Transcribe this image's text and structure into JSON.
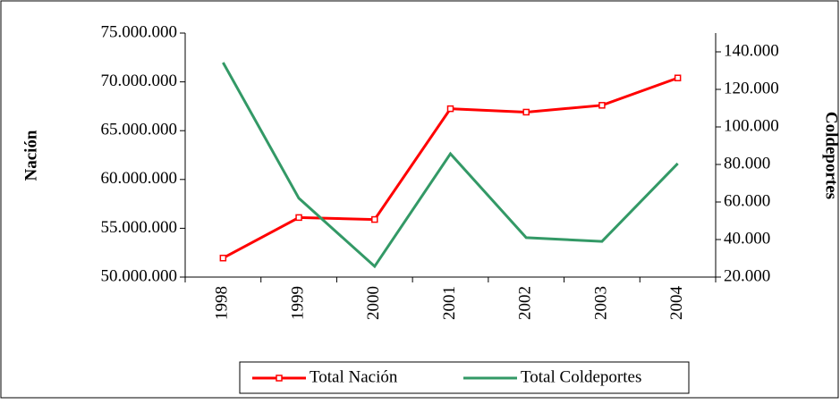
{
  "chart_data": {
    "type": "line",
    "y_label": "Nación",
    "y2_label": "Coldeportes",
    "categories": [
      "1998",
      "1999",
      "2000",
      "2001",
      "2002",
      "2003",
      "2004"
    ],
    "series": [
      {
        "name": "Total Nación",
        "color": "#ff0000",
        "marker": "square",
        "values": [
          51950000,
          56100000,
          55900000,
          67250000,
          66900000,
          67600000,
          70400000
        ]
      },
      {
        "name": "Total Coldeportes",
        "color": "#339966",
        "axis": "y2",
        "values": [
          134300,
          62000,
          25700,
          85700,
          41000,
          39000,
          80500
        ]
      }
    ],
    "ylim": [
      50000000,
      75000000
    ],
    "yticks": [
      {
        "value": 50000000,
        "label": "50.000.000"
      },
      {
        "value": 55000000,
        "label": "55.000.000"
      },
      {
        "value": 60000000,
        "label": "60.000.000"
      },
      {
        "value": 65000000,
        "label": "65.000.000"
      },
      {
        "value": 70000000,
        "label": "70.000.000"
      },
      {
        "value": 75000000,
        "label": "75.000.000"
      }
    ],
    "y2lim": [
      20000,
      150000
    ],
    "y2ticks": [
      {
        "value": 20000,
        "label": "20.000"
      },
      {
        "value": 40000,
        "label": "40.000"
      },
      {
        "value": 60000,
        "label": "60.000"
      },
      {
        "value": 80000,
        "label": "80.000"
      },
      {
        "value": 100000,
        "label": "100.000"
      },
      {
        "value": 120000,
        "label": "120.000"
      },
      {
        "value": 140000,
        "label": "140.000"
      }
    ],
    "legend": "bottom"
  }
}
